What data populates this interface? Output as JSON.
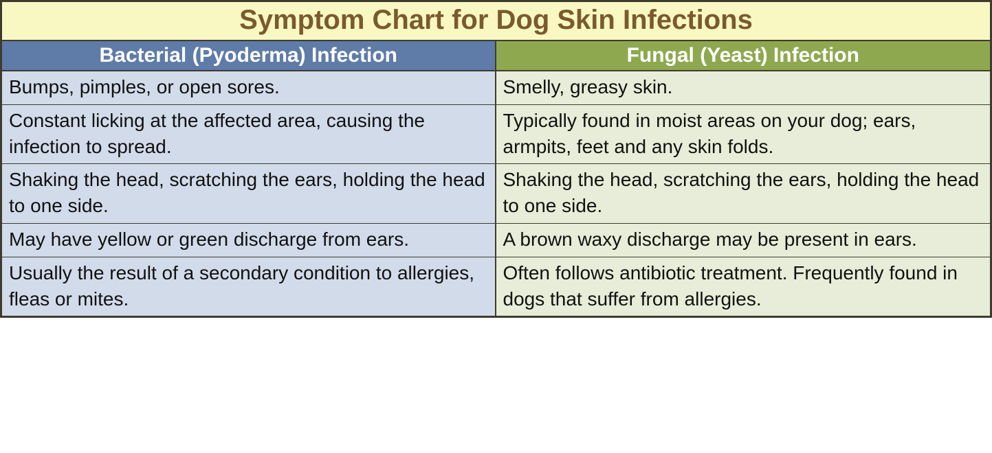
{
  "table": {
    "type": "table",
    "title": "Symptom Chart for Dog Skin Infections",
    "title_fontsize": 40,
    "title_color": "#7a5a2f",
    "title_bg": "#f9f8c3",
    "border_color": "#3e3b2f",
    "font_family": "Comic Sans MS",
    "columns": [
      {
        "label": "Bacterial (Pyoderma) Infection",
        "header_bg": "#5f7ba8",
        "header_text_color": "#ffffff",
        "body_bg": "#d2dbea",
        "body_text_color": "#111111",
        "header_fontsize": 30,
        "body_fontsize": 28
      },
      {
        "label": "Fungal (Yeast) Infection",
        "header_bg": "#8ea84f",
        "header_text_color": "#ffffff",
        "body_bg": "#e7edd8",
        "body_text_color": "#111111",
        "header_fontsize": 30,
        "body_fontsize": 28
      }
    ],
    "rows": [
      [
        "Bumps, pimples, or open sores.",
        "Smelly, greasy skin."
      ],
      [
        "Constant licking at the affected area, causing the infection to spread.",
        "Typically found in moist areas on your dog; ears, armpits, feet and any skin folds."
      ],
      [
        "Shaking the head, scratching the ears, holding the head to one side.",
        "Shaking the head, scratching the ears, holding the head to one side."
      ],
      [
        "May have yellow or green discharge from ears.",
        "A brown waxy discharge may be present in ears."
      ],
      [
        "Usually the result of a secondary condition to allergies, fleas or mites.",
        "Often follows antibiotic treatment. Frequently found in dogs that suffer from allergies."
      ]
    ]
  }
}
